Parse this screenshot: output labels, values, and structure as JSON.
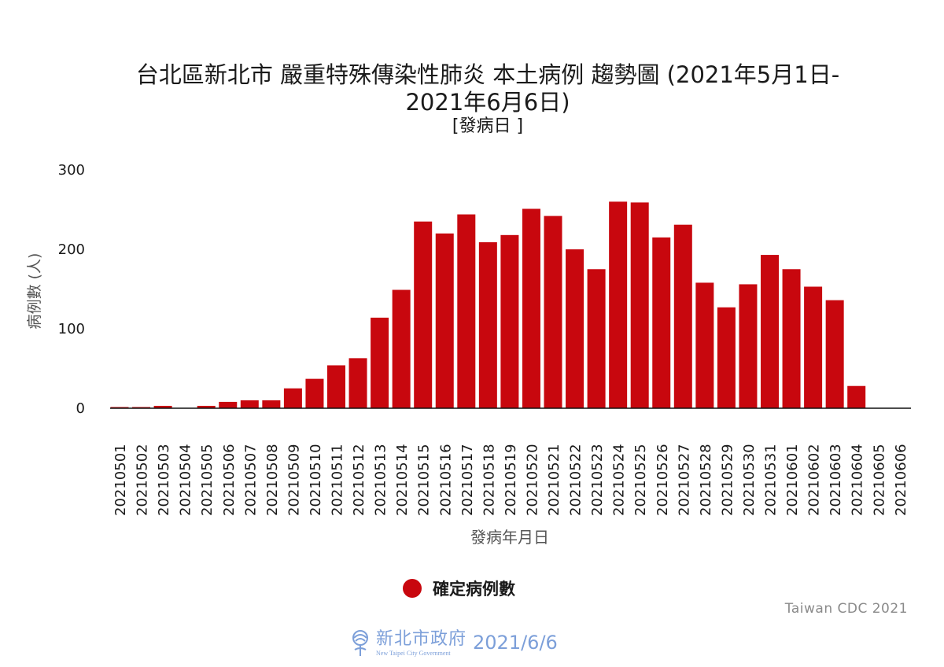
{
  "title": {
    "line1": "台北區新北市 嚴重特殊傳染性肺炎 本土病例 趨勢圖 (2021年5月1日-",
    "line2": "2021年6月6日)",
    "line3": "[發病日 ]"
  },
  "legend": {
    "label": "確定病例數",
    "color": "#c8070e"
  },
  "credit": "Taiwan CDC 2021",
  "footer": {
    "org_zh": "新北市政府",
    "org_en": "New Taipei City Government",
    "date": "2021/6/6",
    "color": "#7c9fd9"
  },
  "chart_data": {
    "type": "bar",
    "title": "台北區新北市 嚴重特殊傳染性肺炎 本土病例 趨勢圖 (2021年5月1日-2021年6月6日)",
    "subtitle": "[發病日 ]",
    "xlabel": "發病年月日",
    "ylabel": "病例數 (人)",
    "ylim": [
      0,
      300
    ],
    "yticks": [
      0,
      100,
      200,
      300
    ],
    "grid": false,
    "legend_position": "bottom",
    "bar_color": "#c8070e",
    "categories": [
      "20210501",
      "20210502",
      "20210503",
      "20210504",
      "20210505",
      "20210506",
      "20210507",
      "20210508",
      "20210509",
      "20210510",
      "20210511",
      "20210512",
      "20210513",
      "20210514",
      "20210515",
      "20210516",
      "20210517",
      "20210518",
      "20210519",
      "20210520",
      "20210521",
      "20210522",
      "20210523",
      "20210524",
      "20210525",
      "20210526",
      "20210527",
      "20210528",
      "20210529",
      "20210530",
      "20210531",
      "20210601",
      "20210602",
      "20210603",
      "20210604",
      "20210605",
      "20210606"
    ],
    "series": [
      {
        "name": "確定病例數",
        "values": [
          1,
          1,
          3,
          0,
          3,
          8,
          10,
          10,
          25,
          37,
          54,
          63,
          114,
          149,
          235,
          220,
          244,
          209,
          218,
          251,
          242,
          200,
          175,
          260,
          259,
          215,
          231,
          158,
          127,
          156,
          193,
          175,
          153,
          136,
          28,
          0,
          0
        ]
      }
    ]
  }
}
